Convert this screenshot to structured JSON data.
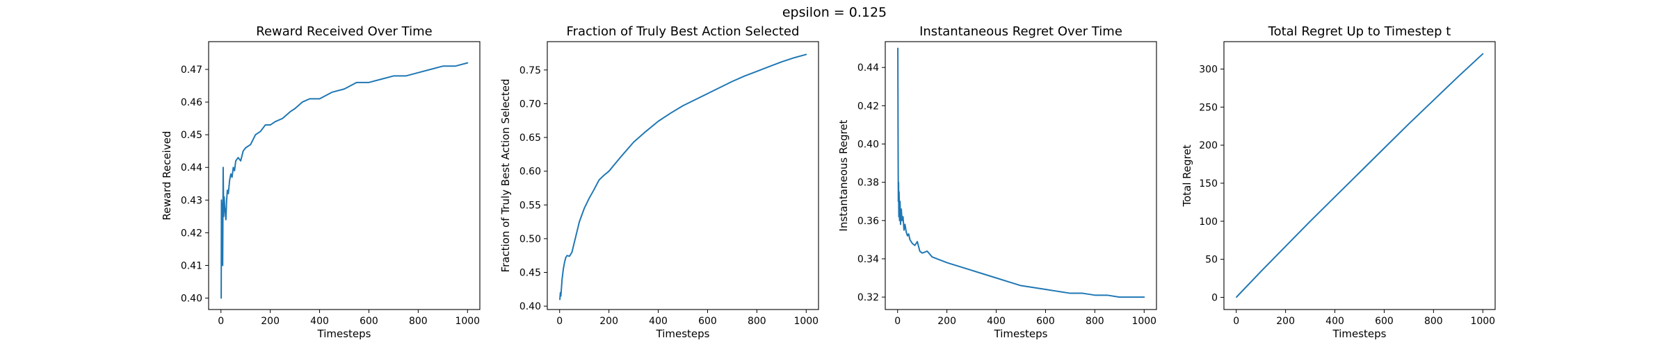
{
  "figure": {
    "suptitle": "epsilon = 0.125",
    "line_color": "#1f77b4"
  },
  "chart_data": [
    {
      "type": "line",
      "title": "Reward Received Over Time",
      "xlabel": "Timesteps",
      "ylabel": "Reward Received",
      "xlim": [
        -50,
        1050
      ],
      "ylim": [
        0.3965,
        0.4785
      ],
      "xticks": [
        0,
        200,
        400,
        600,
        800,
        1000
      ],
      "yticks": [
        0.4,
        0.41,
        0.42,
        0.43,
        0.44,
        0.45,
        0.46,
        0.47
      ],
      "ytick_decimals": 2,
      "grid": false,
      "x": [
        1,
        2,
        3,
        5,
        7,
        9,
        11,
        13,
        15,
        18,
        20,
        23,
        26,
        30,
        35,
        40,
        45,
        50,
        55,
        60,
        70,
        80,
        90,
        100,
        120,
        140,
        160,
        180,
        200,
        220,
        250,
        280,
        300,
        330,
        360,
        400,
        450,
        500,
        550,
        600,
        650,
        700,
        750,
        800,
        850,
        900,
        950,
        1000
      ],
      "y": [
        0.4,
        0.43,
        0.425,
        0.429,
        0.41,
        0.44,
        0.425,
        0.431,
        0.428,
        0.426,
        0.424,
        0.43,
        0.433,
        0.432,
        0.436,
        0.438,
        0.437,
        0.44,
        0.439,
        0.442,
        0.443,
        0.442,
        0.445,
        0.446,
        0.447,
        0.45,
        0.451,
        0.453,
        0.453,
        0.454,
        0.455,
        0.457,
        0.458,
        0.46,
        0.461,
        0.461,
        0.463,
        0.464,
        0.466,
        0.466,
        0.467,
        0.468,
        0.468,
        0.469,
        0.47,
        0.471,
        0.471,
        0.472
      ]
    },
    {
      "type": "line",
      "title": "Fraction of Truly Best Action Selected",
      "xlabel": "Timesteps",
      "ylabel": "Fraction of Truly Best Action Selected",
      "xlim": [
        -50,
        1050
      ],
      "ylim": [
        0.395,
        0.792
      ],
      "xticks": [
        0,
        200,
        400,
        600,
        800,
        1000
      ],
      "yticks": [
        0.4,
        0.45,
        0.5,
        0.55,
        0.6,
        0.65,
        0.7,
        0.75
      ],
      "ytick_decimals": 2,
      "grid": false,
      "x": [
        1,
        3,
        5,
        10,
        15,
        20,
        25,
        30,
        40,
        50,
        60,
        70,
        80,
        100,
        120,
        140,
        160,
        180,
        200,
        250,
        300,
        350,
        400,
        450,
        500,
        550,
        600,
        650,
        700,
        750,
        800,
        850,
        900,
        950,
        1000
      ],
      "y": [
        0.41,
        0.42,
        0.415,
        0.44,
        0.455,
        0.465,
        0.472,
        0.475,
        0.474,
        0.48,
        0.495,
        0.51,
        0.525,
        0.545,
        0.56,
        0.573,
        0.587,
        0.594,
        0.6,
        0.622,
        0.643,
        0.659,
        0.674,
        0.686,
        0.697,
        0.706,
        0.715,
        0.724,
        0.733,
        0.741,
        0.748,
        0.755,
        0.762,
        0.768,
        0.773
      ]
    },
    {
      "type": "line",
      "title": "Instantaneous Regret Over Time",
      "xlabel": "Timesteps",
      "ylabel": "Instantaneous Regret",
      "xlim": [
        -50,
        1050
      ],
      "ylim": [
        0.3135,
        0.4535
      ],
      "xticks": [
        0,
        200,
        400,
        600,
        800,
        1000
      ],
      "yticks": [
        0.32,
        0.34,
        0.36,
        0.38,
        0.4,
        0.42,
        0.44
      ],
      "ytick_decimals": 2,
      "grid": false,
      "x": [
        1,
        2,
        3,
        4,
        5,
        6,
        8,
        10,
        12,
        15,
        18,
        22,
        26,
        30,
        35,
        40,
        45,
        50,
        55,
        60,
        70,
        80,
        90,
        100,
        120,
        140,
        160,
        180,
        200,
        250,
        300,
        350,
        400,
        450,
        500,
        550,
        600,
        650,
        700,
        750,
        800,
        850,
        900,
        950,
        1000
      ],
      "y": [
        0.45,
        0.4,
        0.37,
        0.38,
        0.362,
        0.375,
        0.36,
        0.37,
        0.358,
        0.366,
        0.36,
        0.362,
        0.355,
        0.358,
        0.354,
        0.352,
        0.353,
        0.35,
        0.349,
        0.348,
        0.347,
        0.349,
        0.344,
        0.343,
        0.344,
        0.341,
        0.34,
        0.339,
        0.338,
        0.336,
        0.334,
        0.332,
        0.33,
        0.328,
        0.326,
        0.325,
        0.324,
        0.323,
        0.322,
        0.322,
        0.321,
        0.321,
        0.32,
        0.32,
        0.32
      ]
    },
    {
      "type": "line",
      "title": "Total Regret Up to Timestep t",
      "xlabel": "Timesteps",
      "ylabel": "Total Regret",
      "xlim": [
        -50,
        1050
      ],
      "ylim": [
        -16,
        336
      ],
      "xticks": [
        0,
        200,
        400,
        600,
        800,
        1000
      ],
      "yticks": [
        0,
        50,
        100,
        150,
        200,
        250,
        300
      ],
      "ytick_decimals": 0,
      "grid": false,
      "x": [
        1,
        100,
        200,
        300,
        400,
        500,
        600,
        700,
        800,
        900,
        1000
      ],
      "y": [
        0.4,
        34,
        67,
        100,
        132,
        164,
        196,
        228,
        259,
        290,
        320
      ]
    }
  ]
}
